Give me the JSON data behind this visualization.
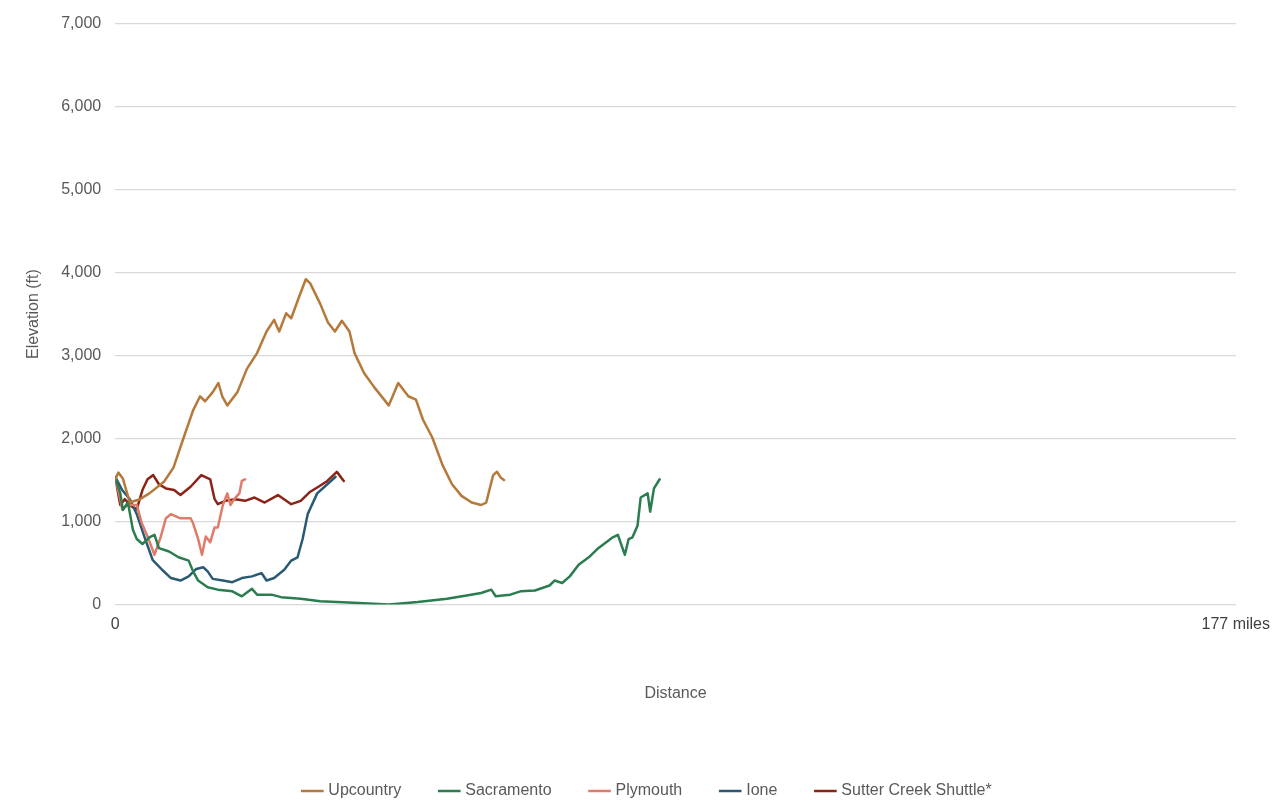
{
  "chart_data": {
    "type": "line",
    "xlabel": "Distance",
    "ylabel": "Elevation (ft)",
    "xlim": [
      0,
      177
    ],
    "xticks": [
      0,
      {
        "value": 177,
        "label": "177 miles"
      }
    ],
    "ylim": [
      0,
      7000
    ],
    "yticks": [
      0,
      {
        "value": 1000,
        "label": "1,000"
      },
      {
        "value": 2000,
        "label": "2,000"
      },
      {
        "value": 3000,
        "label": "3,000"
      },
      {
        "value": 4000,
        "label": "4,000"
      },
      {
        "value": 5000,
        "label": "5,000"
      },
      {
        "value": 6000,
        "label": "6,000"
      },
      {
        "value": 7000,
        "label": "7,000"
      }
    ],
    "grid": "y",
    "legend": "bottom",
    "marker": "none",
    "line_style": "solid",
    "series": [
      {
        "name": "Upcountry",
        "color": "#b5793b",
        "x": [
          0,
          0.5,
          1.2,
          2.3,
          3.9,
          5.4,
          7.7,
          9.2,
          10.8,
          12.3,
          13.4,
          14.2,
          15.4,
          16.3,
          16.9,
          17.7,
          19.3,
          20.8,
          22.4,
          23.9,
          25.1,
          25.9,
          27.0,
          27.8,
          29.0,
          30.1,
          30.8,
          32.4,
          33.6,
          34.7,
          35.8,
          37.0,
          37.8,
          39.3,
          40.9,
          43.2,
          44.7,
          46.3,
          47.5,
          48.6,
          50.1,
          51.7,
          53.2,
          54.7,
          56.3,
          57.8,
          58.6,
          59.7,
          60.3,
          60.9,
          61.4
        ],
        "values": [
          1510,
          1590,
          1520,
          1230,
          1270,
          1340,
          1480,
          1650,
          2010,
          2340,
          2510,
          2450,
          2560,
          2670,
          2510,
          2400,
          2560,
          2840,
          3030,
          3290,
          3430,
          3290,
          3510,
          3450,
          3700,
          3920,
          3870,
          3620,
          3400,
          3290,
          3420,
          3290,
          3030,
          2790,
          2620,
          2400,
          2670,
          2510,
          2470,
          2230,
          2010,
          1680,
          1450,
          1310,
          1230,
          1200,
          1230,
          1560,
          1600,
          1530,
          1500
        ]
      },
      {
        "name": "Sacramento",
        "color": "#2a7d4f",
        "x": [
          0,
          0.8,
          1.2,
          2.0,
          2.8,
          3.4,
          4.3,
          5.4,
          6.2,
          6.9,
          8.5,
          10.0,
          11.6,
          12.3,
          13.1,
          14.6,
          16.2,
          18.5,
          20.0,
          21.6,
          22.4,
          24.7,
          26.2,
          29.3,
          32.4,
          38.5,
          43.2,
          47.8,
          52.4,
          55.5,
          57.8,
          59.4,
          60.1,
          62.4,
          64.0,
          66.3,
          68.6,
          69.4,
          70.6,
          71.8,
          73.2,
          74.8,
          76.3,
          78.6,
          79.4,
          80.5,
          81.1,
          81.7,
          82.5,
          83.0,
          84.1,
          84.5,
          85.1,
          86.0
        ],
        "values": [
          1530,
          1340,
          1140,
          1230,
          900,
          790,
          730,
          810,
          840,
          680,
          640,
          570,
          530,
          400,
          290,
          210,
          180,
          160,
          100,
          190,
          120,
          120,
          90,
          70,
          40,
          20,
          0,
          30,
          70,
          110,
          140,
          180,
          100,
          120,
          160,
          170,
          230,
          290,
          260,
          340,
          480,
          570,
          680,
          810,
          840,
          600,
          790,
          810,
          950,
          1290,
          1340,
          1120,
          1400,
          1510
        ]
      },
      {
        "name": "Plymouth",
        "color": "#e07b6a",
        "x": [
          0,
          0.8,
          1.1,
          2.0,
          3.4,
          4.2,
          5.1,
          6.2,
          7.2,
          8.0,
          8.8,
          10.3,
          11.9,
          12.3,
          13.1,
          13.7,
          14.3,
          15.0,
          15.7,
          16.2,
          17.0,
          17.7,
          18.2,
          18.8,
          19.6,
          20.0,
          20.5
        ],
        "values": [
          1530,
          1270,
          1150,
          1200,
          1200,
          980,
          820,
          600,
          820,
          1040,
          1090,
          1040,
          1040,
          980,
          790,
          600,
          820,
          750,
          930,
          930,
          1200,
          1340,
          1200,
          1270,
          1340,
          1490,
          1510
        ]
      },
      {
        "name": "Ione",
        "color": "#2a5a73",
        "x": [
          0,
          1.1,
          2.3,
          3.4,
          4.6,
          5.9,
          7.4,
          8.8,
          10.3,
          11.6,
          12.8,
          13.9,
          14.6,
          15.4,
          17.0,
          18.5,
          20.0,
          21.6,
          23.1,
          23.9,
          25.1,
          26.7,
          27.8,
          28.8,
          29.6,
          30.4,
          31.9,
          33.5,
          34.8
        ],
        "values": [
          1540,
          1380,
          1270,
          1090,
          820,
          540,
          420,
          320,
          290,
          340,
          430,
          450,
          400,
          310,
          290,
          270,
          320,
          340,
          380,
          290,
          320,
          420,
          530,
          570,
          790,
          1090,
          1340,
          1450,
          1540
        ]
      },
      {
        "name": "Sutter Creek Shuttle*",
        "color": "#8b2318",
        "x": [
          0,
          0.8,
          1.5,
          2.6,
          3.4,
          4.3,
          5.1,
          6.0,
          6.9,
          8.0,
          9.3,
          10.3,
          11.9,
          13.6,
          15.0,
          15.7,
          16.2,
          17.4,
          19.0,
          20.5,
          22.0,
          23.6,
          25.7,
          27.8,
          29.3,
          30.8,
          32.1,
          33.5,
          35.0,
          35.4,
          36.1
        ],
        "values": [
          1530,
          1200,
          1270,
          1180,
          1150,
          1380,
          1510,
          1560,
          1450,
          1400,
          1380,
          1320,
          1420,
          1560,
          1510,
          1270,
          1210,
          1250,
          1270,
          1250,
          1290,
          1230,
          1320,
          1210,
          1250,
          1360,
          1420,
          1490,
          1600,
          1560,
          1490
        ]
      }
    ]
  }
}
